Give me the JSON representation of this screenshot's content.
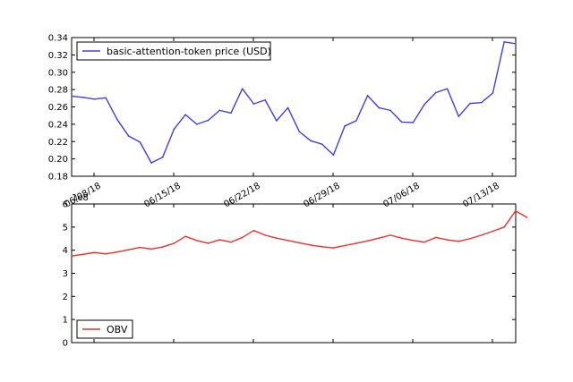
{
  "chart_data": [
    {
      "type": "line",
      "ylim": [
        0.18,
        0.34
      ],
      "yticks": [
        "0.18",
        "0.20",
        "0.22",
        "0.24",
        "0.26",
        "0.28",
        "0.30",
        "0.32",
        "0.34"
      ],
      "xticks": [
        "06/08/18",
        "06/15/18",
        "06/22/18",
        "06/29/18",
        "07/06/18",
        "07/13/18"
      ],
      "legend": "top-left",
      "grid": false,
      "series": [
        {
          "name": "basic-attention-token price (USD)",
          "color": "#4040e0",
          "values": [
            0.2725,
            0.271,
            0.269,
            0.2705,
            0.2455,
            0.2265,
            0.2195,
            0.1955,
            0.202,
            0.2345,
            0.251,
            0.24,
            0.2445,
            0.256,
            0.253,
            0.281,
            0.2635,
            0.268,
            0.244,
            0.259,
            0.2315,
            0.221,
            0.217,
            0.2045,
            0.238,
            0.244,
            0.273,
            0.259,
            0.256,
            0.2425,
            0.242,
            0.263,
            0.2765,
            0.281,
            0.249,
            0.264,
            0.265,
            0.276,
            0.335,
            0.333
          ]
        }
      ]
    },
    {
      "type": "line",
      "ylim": [
        0,
        6
      ],
      "yticks": [
        "0",
        "1",
        "2",
        "3",
        "4",
        "5",
        "6"
      ],
      "offset_label": "1e8",
      "legend": "bottom-left",
      "grid": false,
      "series": [
        {
          "name": "OBV",
          "color": "#ee3030",
          "values": [
            3.75,
            3.82,
            3.9,
            3.84,
            3.92,
            4.02,
            4.12,
            4.05,
            4.14,
            4.3,
            4.6,
            4.42,
            4.3,
            4.45,
            4.35,
            4.55,
            4.85,
            4.65,
            4.52,
            4.42,
            4.32,
            4.22,
            4.15,
            4.1,
            4.2,
            4.3,
            4.4,
            4.52,
            4.65,
            4.52,
            4.42,
            4.35,
            4.55,
            4.45,
            4.38,
            4.5,
            4.65,
            4.82,
            5.0,
            5.7,
            5.42
          ]
        }
      ]
    }
  ]
}
